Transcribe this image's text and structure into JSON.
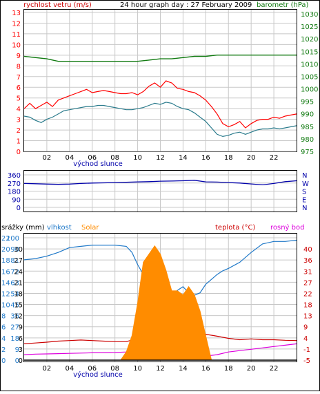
{
  "header": {
    "left_label": "rychlost vetru (m/s)",
    "title": "24 hour graph day : 27 February 2009",
    "right_label": "barometr (hPa)"
  },
  "colors": {
    "wind": "#ff0000",
    "wind_dark": "#cc0000",
    "gust_avg": "#2a7b8c",
    "pressure": "#107a10",
    "direction": "#0000aa",
    "humidity": "#1e78c8",
    "solar": "#ff8c00",
    "temperature": "#cc0000",
    "dewpoint": "#dd00dd",
    "rain": "#000000",
    "grid": "#c8c8c8"
  },
  "chart_data": [
    {
      "type": "line",
      "name": "wind-pressure",
      "title": "24 hour graph day : 27 February 2009",
      "ylabel_left": "rychlost vetru (m/s)",
      "ylabel_right": "barometr (hPa)",
      "y_left_ticks": [
        "0",
        "1",
        "2",
        "3",
        "4",
        "5",
        "6",
        "7",
        "8",
        "9",
        "10",
        "11",
        "12",
        "13"
      ],
      "y_left_range": [
        0,
        13
      ],
      "y_right_ticks": [
        "975",
        "980",
        "985",
        "990",
        "995",
        "1000",
        "1005",
        "1010",
        "1015",
        "1020",
        "1025",
        "1030"
      ],
      "y_right_range": [
        975,
        1030
      ],
      "x_ticks": [
        "02",
        "04",
        "06",
        "08",
        "10",
        "12",
        "14",
        "16",
        "18",
        "20",
        "22"
      ],
      "x_range": [
        0,
        24
      ],
      "x_annotation": "východ slunce",
      "grid": true,
      "series": [
        {
          "key": "wind_max",
          "color": "wind",
          "x": [
            0,
            0.5,
            1,
            1.5,
            2,
            2.5,
            3,
            3.5,
            4,
            4.5,
            5,
            5.5,
            6,
            6.5,
            7,
            7.5,
            8,
            8.5,
            9,
            9.5,
            10,
            10.5,
            11,
            11.5,
            12,
            12.5,
            13,
            13.5,
            14,
            14.5,
            15,
            15.5,
            16,
            16.5,
            17,
            17.5,
            18,
            18.5,
            19,
            19.5,
            20,
            20.5,
            21,
            21.5,
            22,
            22.5,
            23,
            23.5,
            24
          ],
          "y": [
            4,
            4.5,
            4,
            4.3,
            4.6,
            4.2,
            4.8,
            5,
            5.2,
            5.4,
            5.6,
            5.8,
            5.5,
            5.6,
            5.7,
            5.6,
            5.5,
            5.4,
            5.4,
            5.5,
            5.3,
            5.6,
            6.1,
            6.4,
            6.0,
            6.6,
            6.4,
            5.9,
            5.8,
            5.6,
            5.5,
            5.2,
            4.8,
            4.2,
            3.5,
            2.6,
            2.3,
            2.5,
            2.8,
            2.2,
            2.6,
            2.9,
            3.0,
            3.0,
            3.2,
            3.1,
            3.3,
            3.4,
            3.5
          ]
        },
        {
          "key": "wind_avg",
          "color": "gust_avg",
          "x": [
            0,
            0.5,
            1,
            1.5,
            2,
            2.5,
            3,
            3.5,
            4,
            4.5,
            5,
            5.5,
            6,
            6.5,
            7,
            7.5,
            8,
            8.5,
            9,
            9.5,
            10,
            10.5,
            11,
            11.5,
            12,
            12.5,
            13,
            13.5,
            14,
            14.5,
            15,
            15.5,
            16,
            16.5,
            17,
            17.5,
            18,
            18.5,
            19,
            19.5,
            20,
            20.5,
            21,
            21.5,
            22,
            22.5,
            23,
            23.5,
            24
          ],
          "y": [
            3.3,
            3.2,
            2.9,
            2.7,
            3.0,
            3.2,
            3.5,
            3.8,
            3.9,
            4.0,
            4.1,
            4.2,
            4.2,
            4.3,
            4.3,
            4.2,
            4.1,
            4.0,
            3.9,
            3.9,
            4.0,
            4.1,
            4.3,
            4.5,
            4.4,
            4.6,
            4.5,
            4.2,
            4.0,
            3.9,
            3.6,
            3.2,
            2.8,
            2.2,
            1.6,
            1.4,
            1.5,
            1.7,
            1.8,
            1.6,
            1.8,
            2.0,
            2.1,
            2.1,
            2.2,
            2.1,
            2.2,
            2.3,
            2.4
          ]
        },
        {
          "key": "pressure",
          "axis": "right",
          "color": "pressure",
          "x": [
            0,
            1,
            2,
            3,
            4,
            5,
            6,
            7,
            8,
            9,
            10,
            11,
            12,
            13,
            14,
            15,
            16,
            17,
            18,
            19,
            20,
            21,
            22,
            23,
            24
          ],
          "y": [
            1013,
            1012.5,
            1012,
            1011,
            1011,
            1011,
            1011,
            1011,
            1011,
            1011,
            1011,
            1011.5,
            1012,
            1012,
            1012.5,
            1013,
            1013,
            1013.5,
            1013.5,
            1013.5,
            1013.5,
            1013.5,
            1013.5,
            1013.5,
            1013.5
          ]
        }
      ]
    },
    {
      "type": "scatter",
      "name": "wind-direction",
      "y_left_ticks": [
        "360",
        "270",
        "180",
        "90",
        "0"
      ],
      "y_right_ticks": [
        "N",
        "W",
        "S",
        "E",
        "N"
      ],
      "y_range": [
        0,
        360
      ],
      "x_range": [
        0,
        24
      ],
      "series": [
        {
          "key": "direction",
          "color": "direction",
          "x": [
            0,
            1,
            2,
            3,
            4,
            5,
            6,
            7,
            8,
            9,
            10,
            11,
            12,
            13,
            14,
            15,
            16,
            17,
            18,
            19,
            20,
            21,
            22,
            23,
            24
          ],
          "y": [
            265,
            262,
            258,
            255,
            258,
            265,
            270,
            272,
            275,
            278,
            282,
            285,
            290,
            292,
            295,
            300,
            283,
            280,
            275,
            270,
            260,
            250,
            265,
            285,
            295
          ]
        }
      ]
    },
    {
      "type": "line",
      "name": "rain-humidity-temperature",
      "legend": [
        "srážky (mm)",
        "vlhkost",
        "Solar",
        "teplota (°C)",
        "rosný bod"
      ],
      "y_left_ticks_outer": [
        "0",
        "2",
        "4",
        "6",
        "8",
        "10",
        "12",
        "14",
        "16",
        "18",
        "20",
        "22"
      ],
      "y_left_ticks_inner": [
        "0",
        "9",
        "18",
        "27",
        "36",
        "45",
        "54",
        "63",
        "72",
        "81",
        "90",
        "100"
      ],
      "y_left_ticks_right": [
        "0",
        "3",
        "6",
        "9",
        "12",
        "15",
        "18",
        "21",
        "24",
        "27",
        "30"
      ],
      "y_right_ticks": [
        "-5",
        "-1",
        "4",
        "9",
        "13",
        "18",
        "22",
        "27",
        "31",
        "36",
        "40"
      ],
      "y_right_range": [
        -5,
        40
      ],
      "humidity_range": [
        0,
        100
      ],
      "x_ticks": [
        "02",
        "04",
        "06",
        "08",
        "10",
        "12",
        "14",
        "16",
        "18",
        "20",
        "22"
      ],
      "x_range": [
        0,
        24
      ],
      "x_annotation": "východ slunce",
      "series": [
        {
          "key": "humidity",
          "color": "humidity",
          "x": [
            0,
            1,
            2,
            3,
            4,
            5,
            6,
            7,
            8,
            9,
            9.5,
            10,
            10.5,
            11,
            11.5,
            12,
            12.5,
            13,
            13.5,
            14,
            14.5,
            15,
            15.5,
            16,
            16.5,
            17,
            17.5,
            18,
            19,
            20,
            21,
            22,
            23,
            24
          ],
          "y": [
            82,
            83,
            85,
            88,
            92,
            93,
            94,
            94,
            94,
            93,
            88,
            78,
            70,
            62,
            57,
            55,
            53,
            52,
            57,
            60,
            55,
            53,
            55,
            62,
            66,
            70,
            73,
            75,
            80,
            88,
            95,
            97,
            97,
            98
          ]
        },
        {
          "key": "temperature",
          "axis": "right",
          "color": "temperature",
          "x": [
            0,
            1,
            2,
            3,
            4,
            5,
            6,
            7,
            8,
            9,
            10,
            11,
            12,
            13,
            14,
            15,
            16,
            17,
            18,
            19,
            20,
            21,
            22,
            23,
            24
          ],
          "y": [
            1,
            1.3,
            1.6,
            2,
            2.2,
            2.4,
            2.2,
            2,
            1.8,
            1.8,
            3,
            4.3,
            5,
            4.5,
            4.5,
            5.5,
            4.5,
            3.8,
            3,
            2.5,
            2.8,
            2.5,
            2.5,
            2.3,
            2.2
          ]
        },
        {
          "key": "dewpoint",
          "axis": "right",
          "color": "dewpoint",
          "x": [
            0,
            1,
            2,
            3,
            4,
            5,
            6,
            7,
            8,
            9,
            10,
            11,
            12,
            13,
            14,
            15,
            16,
            17,
            18,
            19,
            20,
            21,
            22,
            23,
            24
          ],
          "y": [
            -3,
            -2.8,
            -2.7,
            -2.6,
            -2.5,
            -2.4,
            -2.3,
            -2.3,
            -2.2,
            -2,
            -1,
            -1.5,
            -2.5,
            -3,
            -2,
            -2.5,
            -3.5,
            -3,
            -2,
            -1.5,
            -1,
            -0.5,
            0,
            0.5,
            1
          ]
        },
        {
          "key": "solar",
          "color": "solar",
          "x": [
            8.5,
            9,
            9.5,
            10,
            10.5,
            11,
            11.5,
            12,
            12.5,
            13,
            13.5,
            14,
            14.5,
            15,
            15.5,
            16,
            16.5
          ],
          "y": [
            0,
            2,
            6,
            14,
            24,
            26,
            28,
            26,
            22,
            17,
            17,
            16,
            18,
            16,
            12,
            6,
            0
          ]
        },
        {
          "key": "rain",
          "color": "rain",
          "x": [
            0,
            24
          ],
          "y": [
            0,
            0
          ]
        }
      ]
    }
  ]
}
